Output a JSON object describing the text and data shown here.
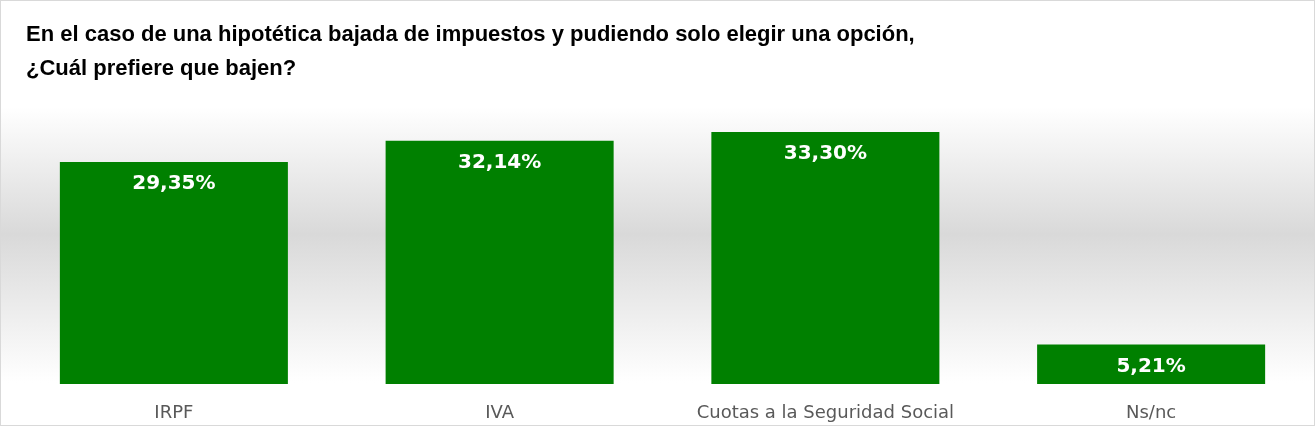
{
  "chart_data": {
    "type": "bar",
    "title": "En el caso de una hipotética bajada de impuestos y pudiendo solo elegir una opción, ¿Cuál prefiere que bajen?",
    "categories": [
      "IRPF",
      "IVA",
      "Cuotas a la Seguridad Social",
      "Ns/nc"
    ],
    "values": [
      29.35,
      32.14,
      33.3,
      5.21
    ],
    "value_labels": [
      "29,35%",
      "32,14%",
      "33,30%",
      "5,21%"
    ],
    "color": "#008000"
  }
}
